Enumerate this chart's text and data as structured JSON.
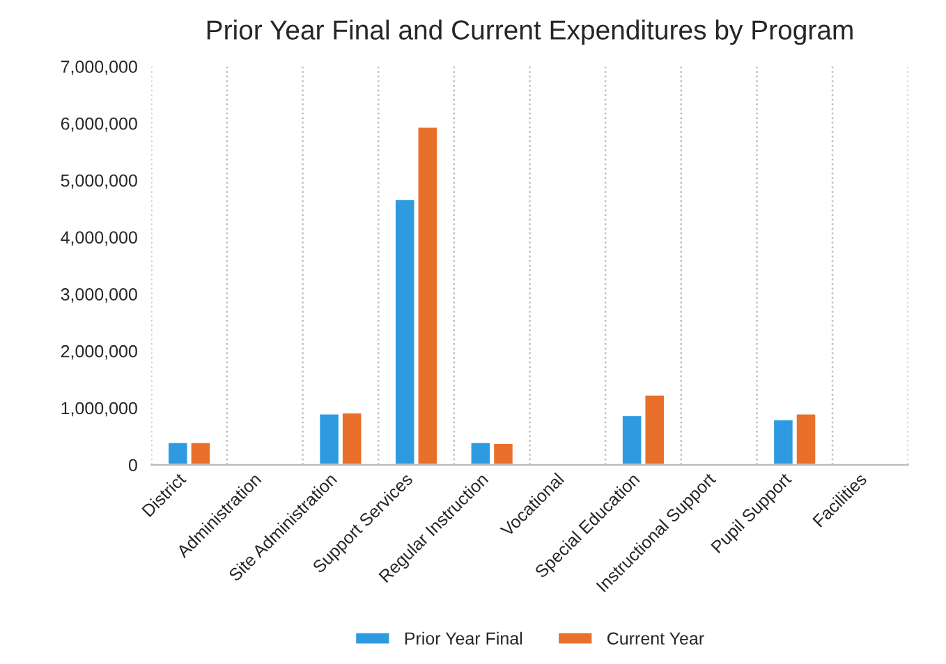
{
  "chart_data": {
    "type": "bar",
    "title": "Prior Year Final and Current Expenditures by Program",
    "categories": [
      "District",
      "Administration",
      "Site Administration",
      "Support Services",
      "Regular Instruction",
      "Vocational",
      "Special Education",
      "Instructional Support",
      "Pupil Support",
      "Facilities"
    ],
    "series": [
      {
        "name": "Prior Year Final",
        "color": "#2e9be0",
        "values": [
          400000,
          null,
          900000,
          4670000,
          400000,
          null,
          870000,
          null,
          800000,
          null
        ]
      },
      {
        "name": "Current Year",
        "color": "#e8702a",
        "values": [
          400000,
          null,
          920000,
          5940000,
          380000,
          null,
          1230000,
          null,
          900000,
          null
        ]
      }
    ],
    "ylim": [
      0,
      7000000
    ],
    "yticks": [
      {
        "value": 0,
        "label": "0"
      },
      {
        "value": 1000000,
        "label": "1,000,000"
      },
      {
        "value": 2000000,
        "label": "2,000,000"
      },
      {
        "value": 3000000,
        "label": "3,000,000"
      },
      {
        "value": 4000000,
        "label": "4,000,000"
      },
      {
        "value": 5000000,
        "label": "5,000,000"
      },
      {
        "value": 6000000,
        "label": "6,000,000"
      },
      {
        "value": 7000000,
        "label": "7,000,000"
      }
    ],
    "grid": "x",
    "legend": "bottom"
  }
}
